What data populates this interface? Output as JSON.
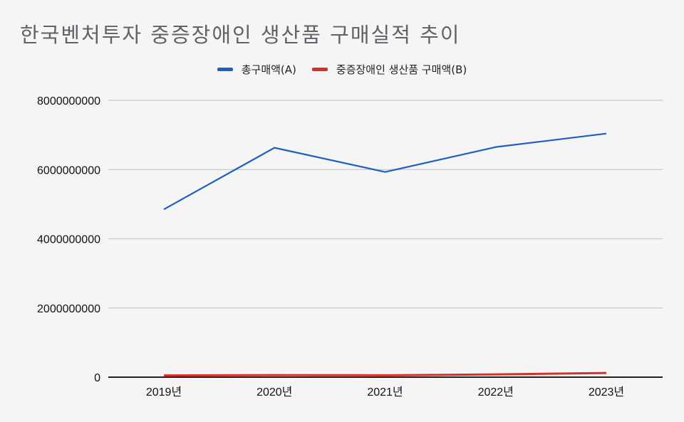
{
  "chart_data": {
    "type": "line",
    "title": "한국벤처투자 중증장애인 생산품 구매실적 추이",
    "xlabel": "",
    "ylabel": "",
    "categories": [
      "2019년",
      "2020년",
      "2021년",
      "2022년",
      "2023년"
    ],
    "series": [
      {
        "name": "총구매액(A)",
        "color": "#1f5fbf",
        "values": [
          4850000000,
          6630000000,
          5930000000,
          6650000000,
          7040000000
        ]
      },
      {
        "name": "중증장애인 생산품 구매액(B)",
        "color": "#d93025",
        "values": [
          50000000,
          60000000,
          55000000,
          80000000,
          120000000
        ]
      }
    ],
    "yticks": [
      "0",
      "2000000000",
      "4000000000",
      "6000000000",
      "8000000000"
    ],
    "ylim": [
      0,
      8000000000
    ],
    "grid": true,
    "legend_position": "top"
  }
}
